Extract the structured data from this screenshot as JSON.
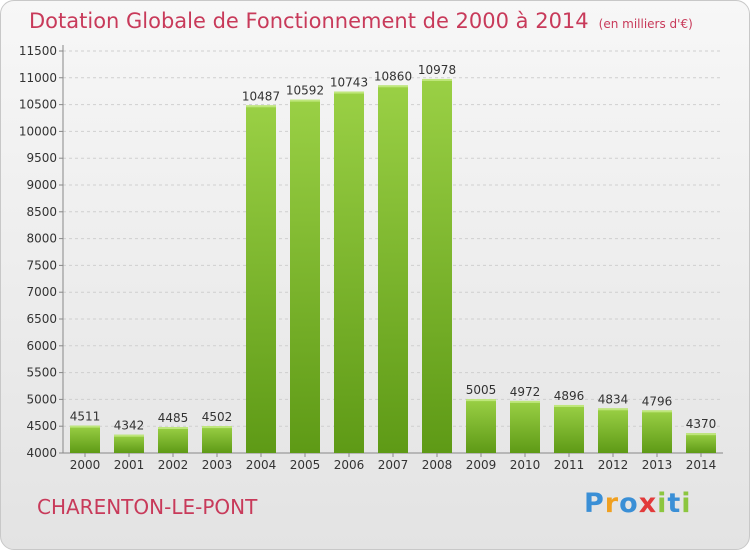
{
  "chart_data": {
    "type": "bar",
    "title": "Dotation Globale de Fonctionnement de 2000 à 2014",
    "subtitle": "(en milliers d'€)",
    "categories": [
      "2000",
      "2001",
      "2002",
      "2003",
      "2004",
      "2005",
      "2006",
      "2007",
      "2008",
      "2009",
      "2010",
      "2011",
      "2012",
      "2013",
      "2014"
    ],
    "values": [
      4511,
      4342,
      4485,
      4502,
      10487,
      10592,
      10743,
      10860,
      10978,
      5005,
      4972,
      4896,
      4834,
      4796,
      4370
    ],
    "ylim": [
      4000,
      11500
    ],
    "yticks": [
      4000,
      4500,
      5000,
      5500,
      6000,
      6500,
      7000,
      7500,
      8000,
      8500,
      9000,
      9500,
      10000,
      10500,
      11000,
      11500
    ],
    "grid": true,
    "xlabel": "",
    "ylabel": "",
    "bar_color_top": "#9ad045",
    "bar_color_bottom": "#5e9a16"
  },
  "commune": "CHARENTON-LE-PONT",
  "logo": {
    "letters": [
      "P",
      "r",
      "o",
      "x",
      "i",
      "t",
      "i"
    ],
    "colors": [
      "#3a8fd6",
      "#f0a020",
      "#3a8fd6",
      "#e23a3a",
      "#8cc63f",
      "#3a8fd6",
      "#8cc63f"
    ]
  }
}
